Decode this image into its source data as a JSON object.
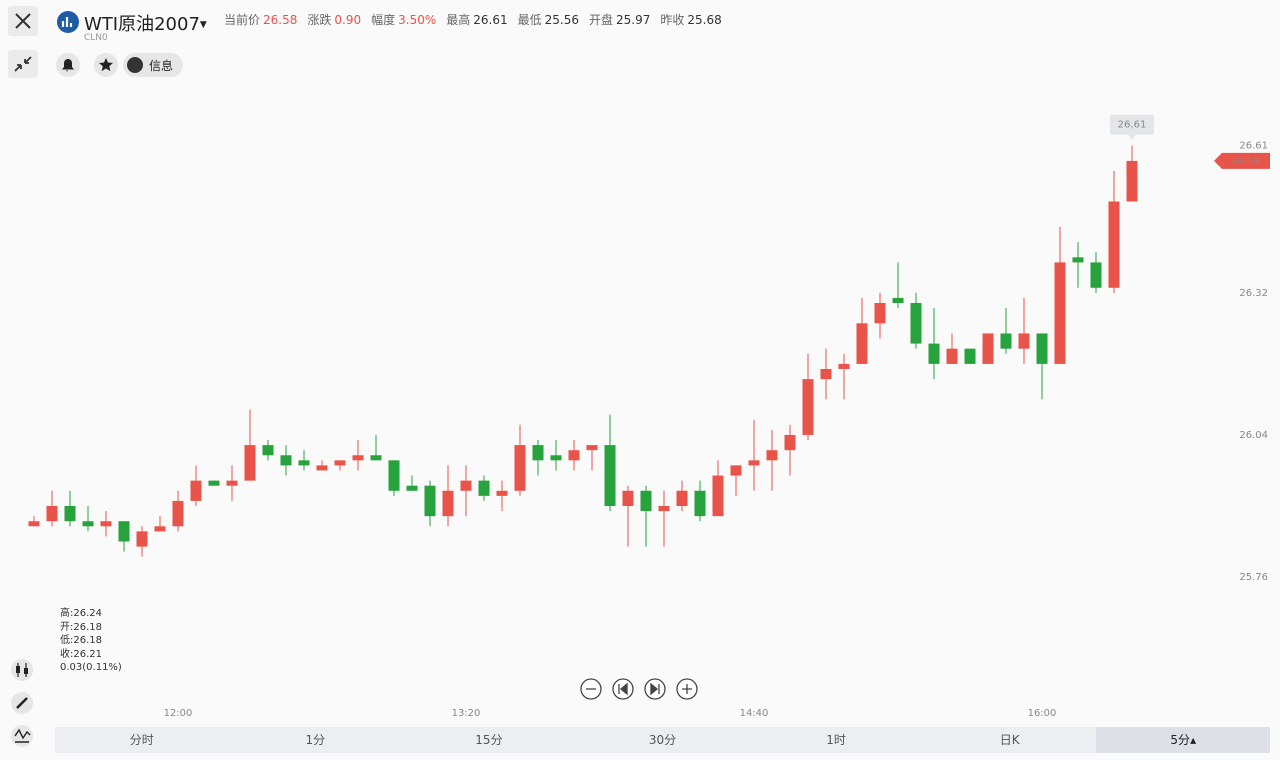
{
  "header": {
    "title": "WTI原油2007",
    "code": "CLN0",
    "quotes": [
      {
        "label": "当前价",
        "value": "26.58",
        "color": "#e8534a"
      },
      {
        "label": "涨跌",
        "value": "0.90",
        "color": "#e8534a"
      },
      {
        "label": "幅度",
        "value": "3.50%",
        "color": "#e8534a"
      },
      {
        "label": "最高",
        "value": "26.61"
      },
      {
        "label": "最低",
        "value": "25.56"
      },
      {
        "label": "开盘",
        "value": "25.97"
      },
      {
        "label": "昨收",
        "value": "25.68"
      }
    ]
  },
  "buttons": {
    "info": "信息"
  },
  "ohlc_panel": [
    "高:26.24",
    "开:26.18",
    "低:26.18",
    "收:26.21",
    "0.03(0.11%)"
  ],
  "periods": {
    "tabs": [
      "分时",
      "1分",
      "15分",
      "30分",
      "1时",
      "日K",
      "5分"
    ],
    "selected": 6
  },
  "chart_data": {
    "type": "candlestick",
    "categories": [
      null,
      null,
      null,
      null,
      null,
      null,
      null,
      null,
      "12:00",
      null,
      null,
      null,
      null,
      null,
      null,
      null,
      null,
      null,
      null,
      null,
      null,
      null,
      null,
      null,
      "13:20",
      null,
      null,
      null,
      null,
      null,
      null,
      null,
      null,
      null,
      null,
      null,
      null,
      null,
      null,
      null,
      "14:40",
      null,
      null,
      null,
      null,
      null,
      null,
      null,
      null,
      null,
      null,
      null,
      null,
      null,
      null,
      null,
      "16:00",
      null,
      null,
      null,
      null,
      null
    ],
    "open": [
      25.86,
      25.87,
      25.9,
      25.87,
      25.86,
      25.87,
      25.82,
      25.85,
      25.86,
      25.91,
      25.95,
      25.94,
      25.95,
      26.02,
      26.0,
      25.99,
      25.97,
      25.98,
      25.99,
      26.0,
      25.99,
      25.94,
      25.94,
      25.88,
      25.93,
      25.95,
      25.92,
      25.93,
      26.02,
      26.0,
      25.99,
      26.01,
      26.02,
      25.9,
      25.93,
      25.89,
      25.9,
      25.93,
      25.88,
      25.96,
      25.98,
      25.99,
      26.01,
      26.04,
      26.15,
      26.17,
      26.18,
      26.26,
      26.31,
      26.3,
      26.22,
      26.18,
      26.21,
      26.18,
      26.24,
      26.21,
      26.24,
      26.18,
      26.39,
      26.38,
      26.33,
      26.5
    ],
    "high": [
      25.88,
      25.93,
      25.93,
      25.9,
      25.89,
      25.87,
      25.86,
      25.88,
      25.93,
      25.98,
      25.95,
      25.98,
      26.09,
      26.03,
      26.02,
      26.01,
      25.99,
      25.99,
      26.03,
      26.04,
      25.99,
      25.96,
      25.95,
      25.98,
      25.98,
      25.96,
      25.95,
      26.06,
      26.03,
      26.03,
      26.03,
      26.02,
      26.08,
      25.94,
      25.94,
      25.93,
      25.95,
      25.95,
      25.99,
      25.98,
      26.07,
      26.05,
      26.06,
      26.2,
      26.21,
      26.2,
      26.31,
      26.32,
      26.38,
      26.32,
      26.29,
      26.24,
      26.21,
      26.24,
      26.29,
      26.31,
      26.24,
      26.45,
      26.42,
      26.4,
      26.56,
      26.61
    ],
    "low": [
      25.86,
      25.86,
      25.86,
      25.85,
      25.84,
      25.81,
      25.8,
      25.85,
      25.85,
      25.9,
      25.94,
      25.91,
      25.95,
      25.99,
      25.96,
      25.97,
      25.97,
      25.97,
      25.97,
      25.99,
      25.92,
      25.93,
      25.86,
      25.86,
      25.88,
      25.91,
      25.89,
      25.92,
      25.96,
      25.97,
      25.97,
      25.97,
      25.89,
      25.82,
      25.82,
      25.82,
      25.89,
      25.87,
      25.88,
      25.92,
      25.93,
      25.93,
      25.96,
      26.03,
      26.11,
      26.11,
      26.18,
      26.23,
      26.29,
      26.21,
      26.15,
      26.18,
      26.18,
      26.18,
      26.2,
      26.18,
      26.11,
      26.18,
      26.33,
      26.32,
      26.32,
      26.5
    ],
    "close": [
      25.87,
      25.9,
      25.87,
      25.86,
      25.87,
      25.83,
      25.85,
      25.86,
      25.91,
      25.95,
      25.94,
      25.95,
      26.02,
      26.0,
      25.98,
      25.98,
      25.98,
      25.99,
      26.0,
      25.99,
      25.93,
      25.93,
      25.88,
      25.93,
      25.95,
      25.92,
      25.93,
      26.02,
      25.99,
      25.99,
      26.01,
      26.02,
      25.9,
      25.93,
      25.89,
      25.9,
      25.93,
      25.88,
      25.96,
      25.98,
      25.99,
      26.01,
      26.04,
      26.15,
      26.17,
      26.18,
      26.26,
      26.3,
      26.3,
      26.22,
      26.18,
      26.21,
      26.18,
      26.24,
      26.21,
      26.24,
      26.18,
      26.38,
      26.38,
      26.33,
      26.5,
      26.58
    ],
    "up_color": "#e8534a",
    "down_color": "#27a33d",
    "ylim": [
      25.5,
      26.7
    ],
    "yticks": [
      25.76,
      26.04,
      26.32,
      26.61
    ],
    "grid": false
  }
}
